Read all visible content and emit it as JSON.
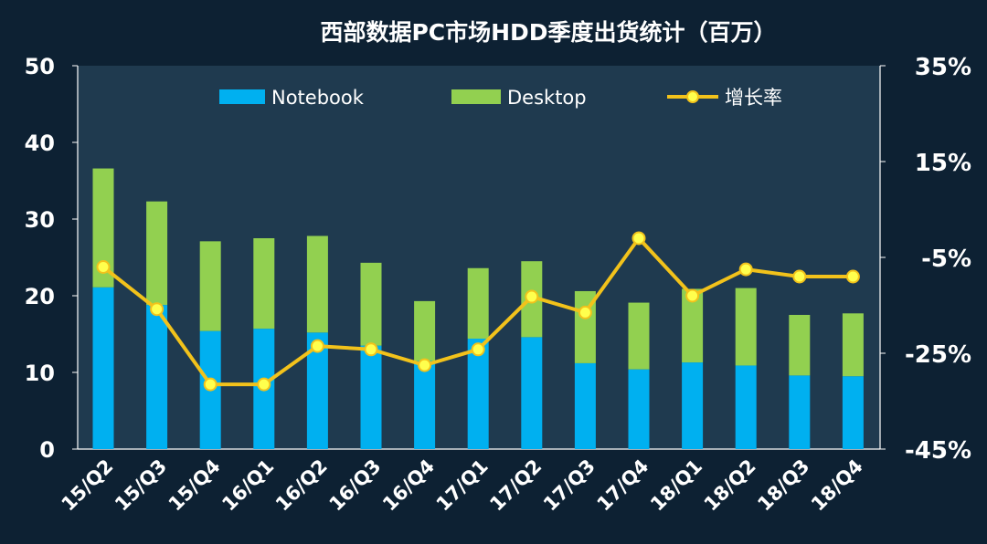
{
  "chart_data": {
    "type": "bar",
    "stacked": true,
    "title": "西部数据PC市场HDD季度出货统计（百万）",
    "categories": [
      "15/Q2",
      "15/Q3",
      "15/Q4",
      "16/Q1",
      "16/Q2",
      "16/Q3",
      "16/Q4",
      "17/Q1",
      "17/Q2",
      "17/Q3",
      "17/Q4",
      "18/Q1",
      "18/Q2",
      "18/Q3",
      "18/Q4"
    ],
    "series": [
      {
        "name": "Notebook",
        "values": [
          21.1,
          18.8,
          15.4,
          15.7,
          15.2,
          13.5,
          11.5,
          14.4,
          14.6,
          11.2,
          10.4,
          11.3,
          10.9,
          9.6,
          9.5
        ],
        "color": "#00b0f0"
      },
      {
        "name": "Desktop",
        "values": [
          15.5,
          13.5,
          11.7,
          11.8,
          12.6,
          10.8,
          7.8,
          9.2,
          9.9,
          9.4,
          8.7,
          9.6,
          10.1,
          7.9,
          8.2
        ],
        "color": "#92d050"
      }
    ],
    "line_series": {
      "name": "增长率",
      "values": [
        -7.0,
        -15.8,
        -31.5,
        -31.5,
        -23.5,
        -24.2,
        -27.5,
        -24.2,
        -13.2,
        -16.5,
        -1.0,
        -13.0,
        -7.5,
        -9.0,
        -9.0
      ],
      "color": "#f2c21b"
    },
    "ylim": [
      0,
      50
    ],
    "y_ticks": [
      "0",
      "10",
      "20",
      "30",
      "40",
      "50"
    ],
    "y2lim": [
      -45,
      35
    ],
    "y2_ticks": [
      "-45%",
      "-25%",
      "-5%",
      "15%",
      "35%"
    ],
    "legend_position": "top",
    "grid": false
  }
}
